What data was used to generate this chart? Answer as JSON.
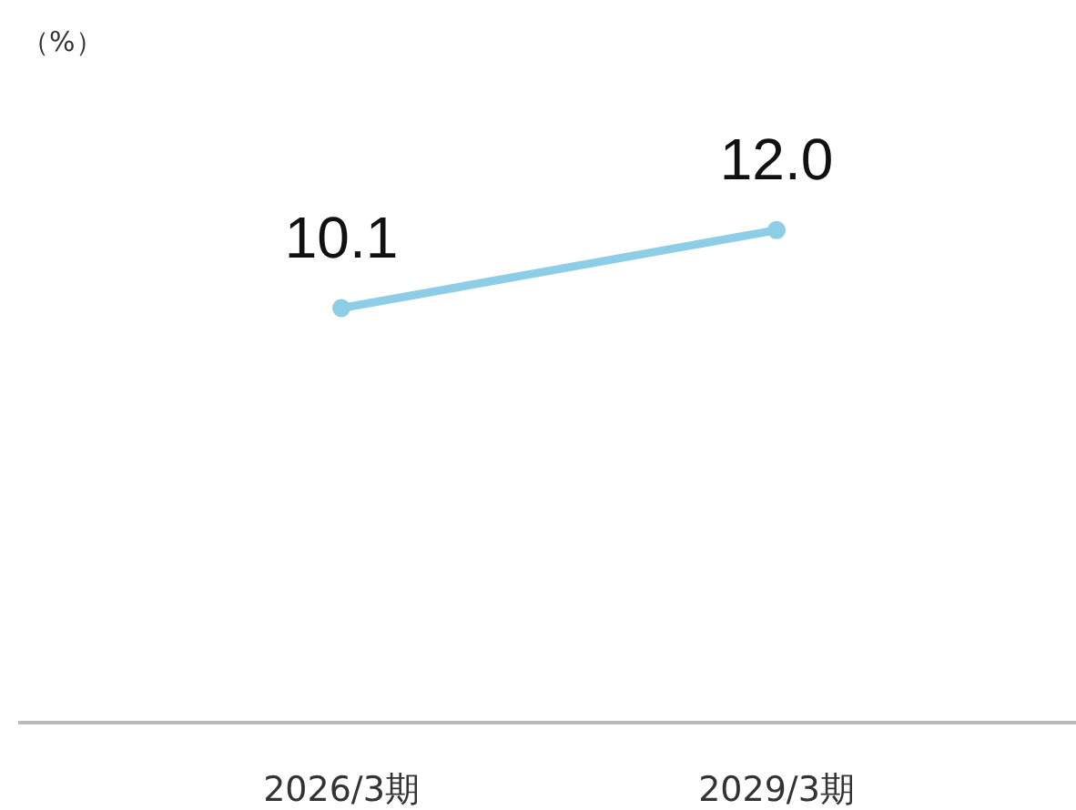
{
  "chart_data": {
    "type": "line",
    "annotations": [
      "（%）"
    ],
    "categories": [
      "2026/3期",
      "2029/3期"
    ],
    "series": [
      {
        "color": "#8ecde6",
        "values": [
          10.1,
          12.0
        ],
        "value_labels": [
          "10.1",
          "12.0"
        ]
      }
    ],
    "marker": "circle",
    "line_style": "solid"
  }
}
